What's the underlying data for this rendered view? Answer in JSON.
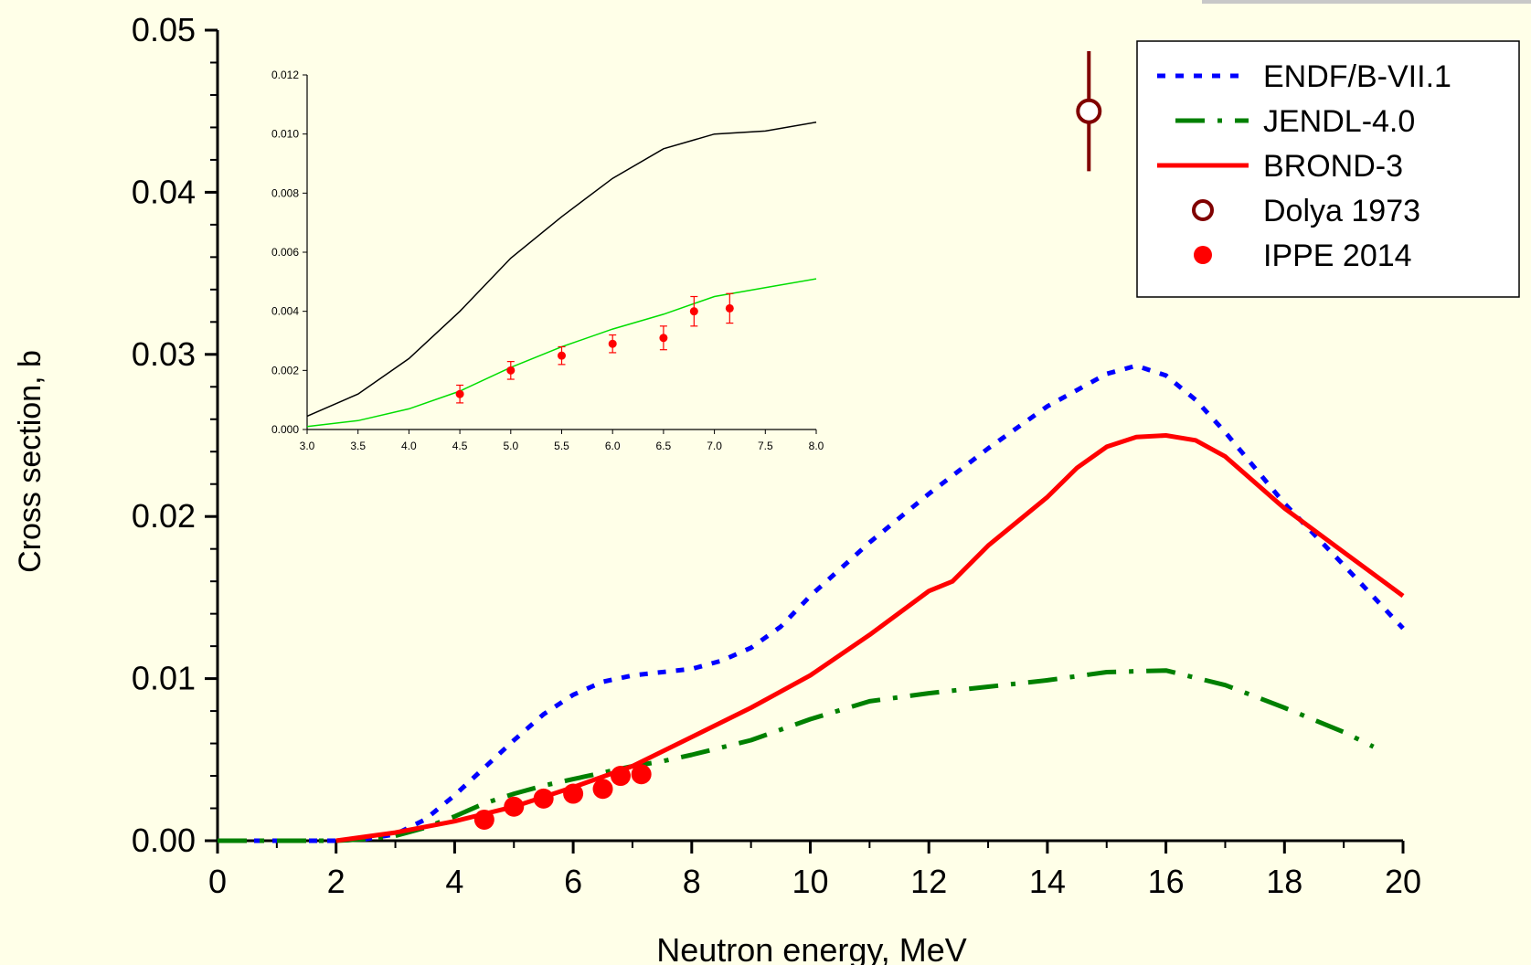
{
  "chart_data": [
    {
      "type": "line",
      "title": "",
      "xlabel": "Neutron energy, MeV",
      "ylabel": "Cross section, b",
      "xlim": [
        0,
        20
      ],
      "ylim": [
        0,
        0.05
      ],
      "x_ticks": [
        "0",
        "2",
        "4",
        "6",
        "8",
        "10",
        "12",
        "14",
        "16",
        "18",
        "20"
      ],
      "y_ticks": [
        "0.00",
        "0.01",
        "0.02",
        "0.03",
        "0.04",
        "0.05"
      ],
      "legend_position": "top-right",
      "grid": false,
      "series": [
        {
          "name": "ENDF/B-VII.1",
          "style": "dotted",
          "color": "#0000FF",
          "points": [
            [
              0,
              0
            ],
            [
              1,
              0
            ],
            [
              2,
              0
            ],
            [
              2.5,
              0.0001
            ],
            [
              3,
              0.0004
            ],
            [
              3.5,
              0.0013
            ],
            [
              4,
              0.0028
            ],
            [
              4.5,
              0.0045
            ],
            [
              5,
              0.0062
            ],
            [
              5.5,
              0.0078
            ],
            [
              6,
              0.009
            ],
            [
              6.5,
              0.0098
            ],
            [
              7,
              0.0102
            ],
            [
              7.5,
              0.0104
            ],
            [
              8,
              0.0106
            ],
            [
              8.5,
              0.0111
            ],
            [
              9,
              0.0119
            ],
            [
              9.5,
              0.0132
            ],
            [
              10,
              0.0151
            ],
            [
              11,
              0.0184
            ],
            [
              12,
              0.0214
            ],
            [
              13,
              0.0242
            ],
            [
              14,
              0.0268
            ],
            [
              15,
              0.0288
            ],
            [
              15.5,
              0.0293
            ],
            [
              16,
              0.0287
            ],
            [
              16.5,
              0.0272
            ],
            [
              17,
              0.0252
            ],
            [
              18,
              0.0208
            ],
            [
              19,
              0.017
            ],
            [
              20,
              0.0131
            ]
          ]
        },
        {
          "name": "JENDL-4.0",
          "style": "dash-dot",
          "color": "#008000",
          "points": [
            [
              0,
              0
            ],
            [
              1,
              0
            ],
            [
              2,
              0
            ],
            [
              2.5,
              0.0001
            ],
            [
              3,
              0.0003
            ],
            [
              3.5,
              0.0008
            ],
            [
              4,
              0.0015
            ],
            [
              4.5,
              0.0023
            ],
            [
              5,
              0.0029
            ],
            [
              5.5,
              0.0034
            ],
            [
              6,
              0.0038
            ],
            [
              6.5,
              0.0042
            ],
            [
              7,
              0.0046
            ],
            [
              7.5,
              0.0049
            ],
            [
              8,
              0.0053
            ],
            [
              9,
              0.0062
            ],
            [
              10,
              0.0075
            ],
            [
              11,
              0.0086
            ],
            [
              12,
              0.0091
            ],
            [
              13,
              0.0095
            ],
            [
              14,
              0.0099
            ],
            [
              15,
              0.0104
            ],
            [
              16,
              0.0105
            ],
            [
              17,
              0.0096
            ],
            [
              18,
              0.0082
            ],
            [
              19,
              0.0067
            ],
            [
              19.5,
              0.0058
            ]
          ]
        },
        {
          "name": "BROND-3",
          "style": "solid",
          "color": "#FF0000",
          "points": [
            [
              2,
              0
            ],
            [
              3,
              0.0005
            ],
            [
              4,
              0.0012
            ],
            [
              5,
              0.0021
            ],
            [
              6,
              0.0033
            ],
            [
              7,
              0.0046
            ],
            [
              8,
              0.0064
            ],
            [
              9,
              0.0082
            ],
            [
              10,
              0.0102
            ],
            [
              11,
              0.0127
            ],
            [
              12,
              0.0154
            ],
            [
              12.4,
              0.016
            ],
            [
              13,
              0.0182
            ],
            [
              14,
              0.0212
            ],
            [
              14.5,
              0.023
            ],
            [
              15,
              0.0243
            ],
            [
              15.5,
              0.0249
            ],
            [
              16,
              0.025
            ],
            [
              16.5,
              0.0247
            ],
            [
              17,
              0.0237
            ],
            [
              18,
              0.0205
            ],
            [
              19,
              0.0178
            ],
            [
              20,
              0.0151
            ]
          ]
        },
        {
          "name": "Dolya 1973",
          "style": "open-circle",
          "color": "#800000",
          "points": [
            [
              14.7,
              0.045
            ]
          ],
          "errors": [
            0.0037
          ]
        },
        {
          "name": "IPPE 2014",
          "style": "filled-circle",
          "color": "#FF0000",
          "points": [
            [
              4.5,
              0.0013
            ],
            [
              5,
              0.0021
            ],
            [
              5.5,
              0.0026
            ],
            [
              6,
              0.0029
            ],
            [
              6.5,
              0.0032
            ],
            [
              6.8,
              0.004
            ],
            [
              7.15,
              0.0041
            ]
          ]
        }
      ]
    },
    {
      "type": "line",
      "title": "",
      "xlabel": "",
      "ylabel": "",
      "xlim": [
        3,
        8
      ],
      "ylim": [
        0,
        0.012
      ],
      "x_ticks": [
        "3.0",
        "3.5",
        "4.0",
        "4.5",
        "5.0",
        "5.5",
        "6.0",
        "6.5",
        "7.0",
        "7.5",
        "8.0"
      ],
      "y_ticks": [
        "0.000",
        "0.002",
        "0.004",
        "0.006",
        "0.008",
        "0.010",
        "0.012"
      ],
      "legend_position": "none",
      "grid": false,
      "series": [
        {
          "style": "solid",
          "color": "#000000",
          "points": [
            [
              3,
              0.00045
            ],
            [
              3.5,
              0.0012
            ],
            [
              4,
              0.0024
            ],
            [
              4.5,
              0.004
            ],
            [
              5,
              0.0058
            ],
            [
              5.5,
              0.0072
            ],
            [
              6,
              0.0085
            ],
            [
              6.5,
              0.0095
            ],
            [
              7,
              0.01
            ],
            [
              7.5,
              0.0101
            ],
            [
              8,
              0.0104
            ]
          ]
        },
        {
          "style": "solid",
          "color": "#00DD00",
          "points": [
            [
              3,
              0.0001
            ],
            [
              3.5,
              0.0003
            ],
            [
              4,
              0.0007
            ],
            [
              4.5,
              0.0013
            ],
            [
              5,
              0.0021
            ],
            [
              5.5,
              0.0028
            ],
            [
              6,
              0.0034
            ],
            [
              6.5,
              0.0039
            ],
            [
              7,
              0.0045
            ],
            [
              7.5,
              0.0048
            ],
            [
              8,
              0.0051
            ]
          ]
        },
        {
          "style": "filled-circle-errorbar",
          "color": "#FF0000",
          "points": [
            [
              4.5,
              0.0012
            ],
            [
              5,
              0.002
            ],
            [
              5.5,
              0.0025
            ],
            [
              6,
              0.0029
            ],
            [
              6.5,
              0.0031
            ],
            [
              6.8,
              0.004
            ],
            [
              7.15,
              0.0041
            ]
          ],
          "errors": [
            0.0003,
            0.0003,
            0.0003,
            0.0003,
            0.0004,
            0.0005,
            0.0005
          ]
        }
      ]
    }
  ]
}
